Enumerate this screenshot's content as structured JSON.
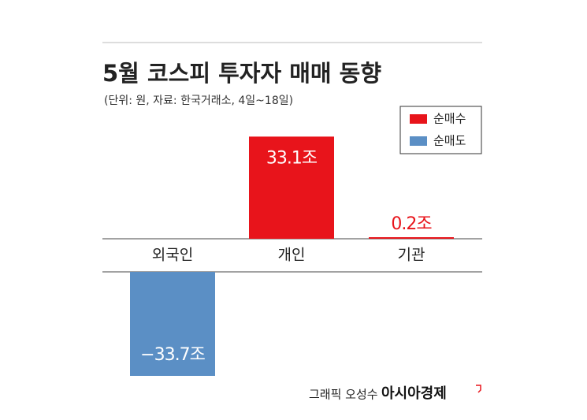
{
  "chart_data": {
    "type": "bar",
    "title": "5월 코스피 투자자 매매 동향",
    "subtitle": "(단위: 원, 자료: 한국거래소, 4일~18일)",
    "categories": [
      "외국인",
      "개인",
      "기관"
    ],
    "series": [
      {
        "name": "순매수",
        "color": "#e8141b",
        "values": [
          null,
          33.1,
          0.2
        ],
        "value_labels": [
          null,
          "33.1조",
          "0.2조"
        ]
      },
      {
        "name": "순매도",
        "color": "#5b8fc5",
        "values": [
          -33.7,
          null,
          null
        ],
        "value_labels": [
          "−33.7조",
          null,
          null
        ]
      }
    ],
    "legend": "upper right",
    "credit": "그래픽 오성수",
    "publisher": "아시아경제"
  }
}
